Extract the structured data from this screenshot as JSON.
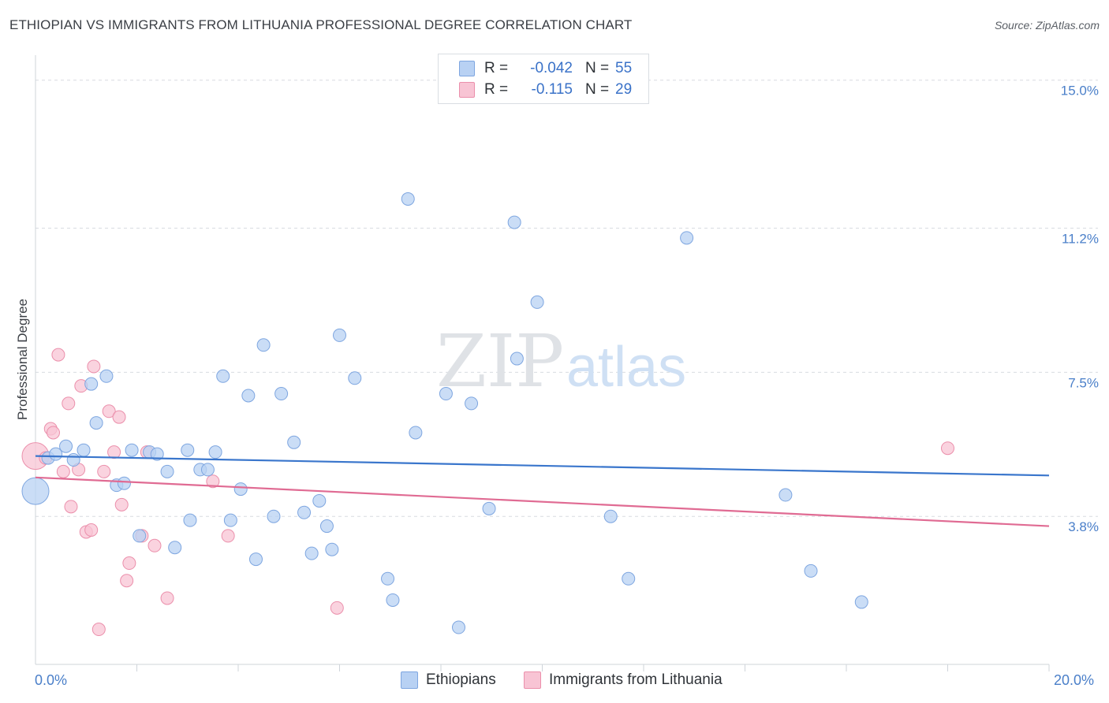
{
  "header": {
    "title": "ETHIOPIAN VS IMMIGRANTS FROM LITHUANIA PROFESSIONAL DEGREE CORRELATION CHART",
    "source": "Source: ZipAtlas.com"
  },
  "watermark": {
    "zip": "ZIP",
    "atlas": "atlas"
  },
  "legend": {
    "rows": [
      {
        "r_label": "R =",
        "r_value": "-0.042",
        "n_label": "N =",
        "n_value": "55"
      },
      {
        "r_label": "R =",
        "r_value": "-0.115",
        "n_label": "N =",
        "n_value": "29"
      }
    ]
  },
  "bottom_legend": {
    "series1": "Ethiopians",
    "series2": "Immigrants from Lithuania"
  },
  "axes": {
    "x_min_label": "0.0%",
    "x_max_label": "20.0%"
  },
  "colors": {
    "series1_fill": "#b8d1f3",
    "series1_stroke": "#7ea6e0",
    "series1_line": "#3a76cc",
    "series2_fill": "#f8c4d4",
    "series2_stroke": "#eb8fab",
    "series2_line": "#e06b93",
    "tick_text": "#4a7fc9",
    "grid": "#d8dce1"
  },
  "chart_data": {
    "type": "scatter",
    "title": "ETHIOPIAN VS IMMIGRANTS FROM LITHUANIA PROFESSIONAL DEGREE CORRELATION CHART",
    "xlabel": "",
    "ylabel": "Professional Degree",
    "xlim": [
      0,
      20
    ],
    "ylim": [
      0,
      15.5
    ],
    "y_ticks": [
      3.8,
      7.5,
      11.2,
      15.0
    ],
    "y_tick_labels": [
      "3.8%",
      "7.5%",
      "11.2%",
      "15.0%"
    ],
    "grid": true,
    "legend_position": "top-center",
    "series": [
      {
        "name": "Ethiopians",
        "r": -0.042,
        "n": 55,
        "trend": {
          "x": [
            0,
            20
          ],
          "y": [
            5.35,
            4.85
          ]
        },
        "points": [
          {
            "x": 0.0,
            "y": 4.45,
            "big": true
          },
          {
            "x": 0.25,
            "y": 5.3
          },
          {
            "x": 0.4,
            "y": 5.4
          },
          {
            "x": 0.6,
            "y": 5.6
          },
          {
            "x": 0.75,
            "y": 5.25
          },
          {
            "x": 0.95,
            "y": 5.5
          },
          {
            "x": 1.1,
            "y": 7.2
          },
          {
            "x": 1.2,
            "y": 6.2
          },
          {
            "x": 1.4,
            "y": 7.4
          },
          {
            "x": 1.6,
            "y": 4.6
          },
          {
            "x": 1.75,
            "y": 4.65
          },
          {
            "x": 1.9,
            "y": 5.5
          },
          {
            "x": 2.05,
            "y": 3.3
          },
          {
            "x": 2.25,
            "y": 5.45
          },
          {
            "x": 2.4,
            "y": 5.4
          },
          {
            "x": 2.6,
            "y": 4.95
          },
          {
            "x": 2.75,
            "y": 3.0
          },
          {
            "x": 3.0,
            "y": 5.5
          },
          {
            "x": 3.05,
            "y": 3.7
          },
          {
            "x": 3.25,
            "y": 5.0
          },
          {
            "x": 3.4,
            "y": 5.0
          },
          {
            "x": 3.55,
            "y": 5.45
          },
          {
            "x": 3.7,
            "y": 7.4
          },
          {
            "x": 3.85,
            "y": 3.7
          },
          {
            "x": 4.05,
            "y": 4.5
          },
          {
            "x": 4.2,
            "y": 6.9
          },
          {
            "x": 4.35,
            "y": 2.7
          },
          {
            "x": 4.5,
            "y": 8.2
          },
          {
            "x": 4.7,
            "y": 3.8
          },
          {
            "x": 4.85,
            "y": 6.95
          },
          {
            "x": 5.1,
            "y": 5.7
          },
          {
            "x": 5.3,
            "y": 3.9
          },
          {
            "x": 5.45,
            "y": 2.85
          },
          {
            "x": 5.6,
            "y": 4.2
          },
          {
            "x": 5.75,
            "y": 3.55
          },
          {
            "x": 5.85,
            "y": 2.95
          },
          {
            "x": 6.0,
            "y": 8.45
          },
          {
            "x": 6.3,
            "y": 7.35
          },
          {
            "x": 6.95,
            "y": 2.2
          },
          {
            "x": 7.05,
            "y": 1.65
          },
          {
            "x": 7.35,
            "y": 11.95
          },
          {
            "x": 7.5,
            "y": 5.95
          },
          {
            "x": 8.1,
            "y": 6.95
          },
          {
            "x": 8.35,
            "y": 0.95
          },
          {
            "x": 8.6,
            "y": 6.7
          },
          {
            "x": 8.95,
            "y": 4.0
          },
          {
            "x": 9.45,
            "y": 11.35
          },
          {
            "x": 9.5,
            "y": 7.85
          },
          {
            "x": 9.9,
            "y": 9.3
          },
          {
            "x": 11.35,
            "y": 3.8
          },
          {
            "x": 11.7,
            "y": 2.2
          },
          {
            "x": 12.85,
            "y": 10.95
          },
          {
            "x": 14.8,
            "y": 4.35
          },
          {
            "x": 15.3,
            "y": 2.4
          },
          {
            "x": 16.3,
            "y": 1.6
          }
        ]
      },
      {
        "name": "Immigrants from Lithuania",
        "r": -0.115,
        "n": 29,
        "trend": {
          "x": [
            0,
            20
          ],
          "y": [
            4.8,
            3.55
          ]
        },
        "points": [
          {
            "x": 0.0,
            "y": 5.35,
            "big": true
          },
          {
            "x": 0.2,
            "y": 5.3
          },
          {
            "x": 0.3,
            "y": 6.05
          },
          {
            "x": 0.35,
            "y": 5.95
          },
          {
            "x": 0.45,
            "y": 7.95
          },
          {
            "x": 0.55,
            "y": 4.95
          },
          {
            "x": 0.65,
            "y": 6.7
          },
          {
            "x": 0.7,
            "y": 4.05
          },
          {
            "x": 0.85,
            "y": 5.0
          },
          {
            "x": 0.9,
            "y": 7.15
          },
          {
            "x": 1.0,
            "y": 3.4
          },
          {
            "x": 1.1,
            "y": 3.45
          },
          {
            "x": 1.15,
            "y": 7.65
          },
          {
            "x": 1.25,
            "y": 0.9
          },
          {
            "x": 1.35,
            "y": 4.95
          },
          {
            "x": 1.45,
            "y": 6.5
          },
          {
            "x": 1.55,
            "y": 5.45
          },
          {
            "x": 1.65,
            "y": 6.35
          },
          {
            "x": 1.7,
            "y": 4.1
          },
          {
            "x": 1.8,
            "y": 2.15
          },
          {
            "x": 1.85,
            "y": 2.6
          },
          {
            "x": 2.1,
            "y": 3.3
          },
          {
            "x": 2.2,
            "y": 5.45
          },
          {
            "x": 2.35,
            "y": 3.05
          },
          {
            "x": 2.6,
            "y": 1.7
          },
          {
            "x": 3.5,
            "y": 4.7
          },
          {
            "x": 3.8,
            "y": 3.3
          },
          {
            "x": 5.95,
            "y": 1.45
          },
          {
            "x": 18.0,
            "y": 5.55
          }
        ]
      }
    ]
  }
}
